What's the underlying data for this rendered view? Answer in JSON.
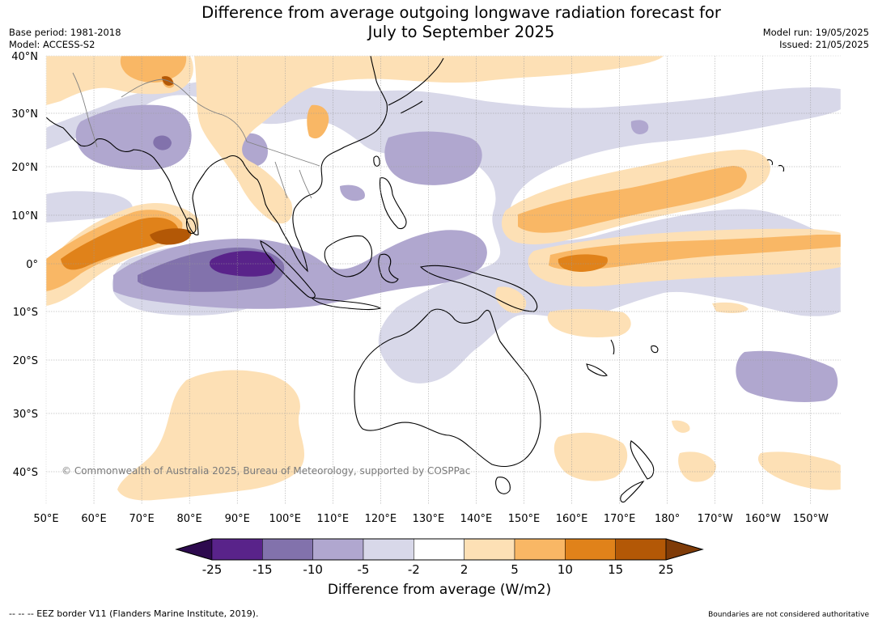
{
  "title": {
    "line1": "Difference from average outgoing longwave radiation forecast for",
    "line2": "July to September 2025"
  },
  "meta": {
    "base_period": "Base period: 1981-2018",
    "model": "Model: ACCESS-S2",
    "model_run": "Model run: 19/05/2025",
    "issued": "Issued: 21/05/2025"
  },
  "map": {
    "lat_labels": [
      "40°N",
      "30°N",
      "20°N",
      "10°N",
      "0°",
      "10°S",
      "20°S",
      "30°S",
      "40°S"
    ],
    "lon_labels": [
      "50°E",
      "60°E",
      "70°E",
      "80°E",
      "90°E",
      "100°E",
      "110°E",
      "120°E",
      "130°E",
      "140°E",
      "150°E",
      "160°E",
      "170°E",
      "180°",
      "170°W",
      "160°W",
      "150°W"
    ],
    "copyright": "© Commonwealth of Australia 2025, Bureau of Meteorology, supported by COSPPac",
    "colors": {
      "land_outline": "#000000",
      "border": "#808080",
      "gridline": "#9a9a9a"
    }
  },
  "colorbar": {
    "ticks": [
      "-25",
      "-15",
      "-10",
      "-5",
      "-2",
      "2",
      "5",
      "10",
      "15",
      "25"
    ],
    "colors": [
      "#2d0a4e",
      "#59238a",
      "#8272ac",
      "#b0a7cf",
      "#d8d8e9",
      "#ffffff",
      "#fde0b5",
      "#f9b765",
      "#e0821a",
      "#b35806",
      "#7f3b08"
    ],
    "label": "Difference from average (W/m2)"
  },
  "footer": {
    "left": "--  --  -- EEZ border V11 (Flanders Marine Institute, 2019).",
    "right": "Boundaries are not considered authoritative"
  }
}
